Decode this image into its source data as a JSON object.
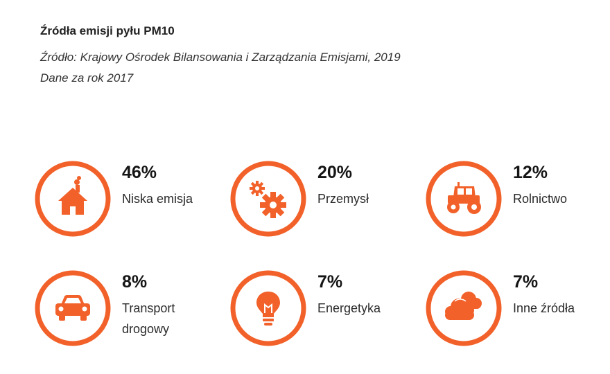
{
  "title": "Źródła emisji pyłu PM10",
  "source_line": "Źródło: Krajowy Ośrodek Bilansowania i Zarządzania Emisjami, 2019",
  "year_line": "Dane za rok 2017",
  "colors": {
    "accent": "#f2612a",
    "text": "#1f1f1f"
  },
  "chart_data": {
    "type": "table",
    "unit": "%",
    "categories": [
      "Niska emisja",
      "Przemysł",
      "Rolnictwo",
      "Transport drogowy",
      "Energetyka",
      "Inne źródła"
    ],
    "values": [
      46,
      20,
      12,
      8,
      7,
      7
    ],
    "items": [
      {
        "value": "46%",
        "label": "Niska emisja",
        "icon": "house-smoke-icon"
      },
      {
        "value": "20%",
        "label": "Przemysł",
        "icon": "gears-icon"
      },
      {
        "value": "12%",
        "label": "Rolnictwo",
        "icon": "tractor-icon"
      },
      {
        "value": "8%",
        "label": "Transport drogowy",
        "icon": "car-icon"
      },
      {
        "value": "7%",
        "label": "Energetyka",
        "icon": "lightbulb-icon"
      },
      {
        "value": "7%",
        "label": "Inne źródła",
        "icon": "cloud-icon"
      }
    ]
  }
}
